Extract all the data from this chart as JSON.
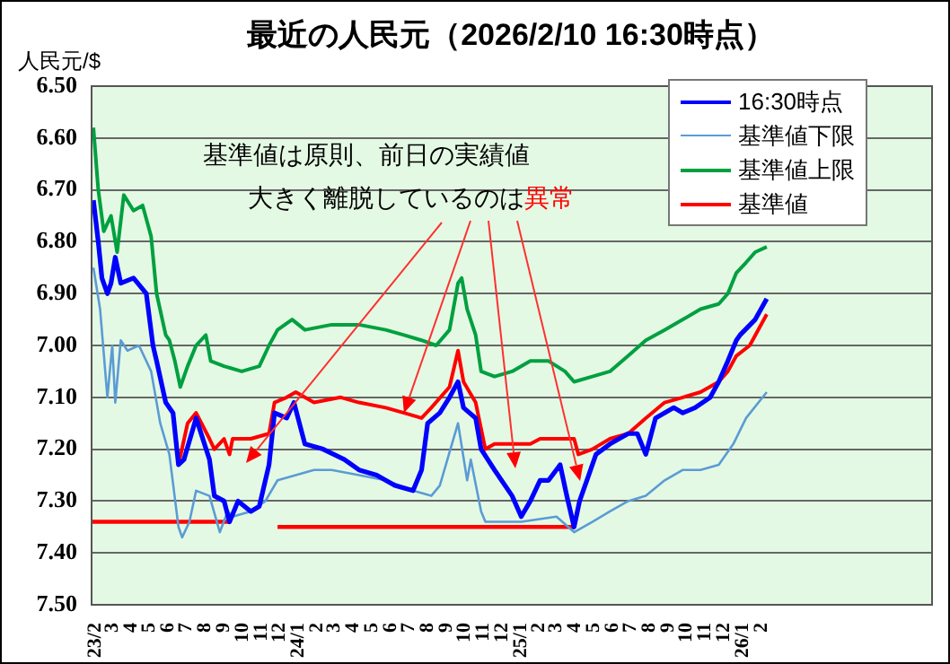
{
  "chart_data": {
    "type": "line",
    "title": "最近の人民元（2026/2/10 16:30時点）",
    "ylabel": "人民元/$",
    "annotations": [
      "基準値は原則、前日の実績値",
      {
        "text": "大きく離脱しているのは",
        "x": "2024-06-23",
        "y": 7.13
      },
      "異常"
    ],
    "xlim": [
      "2023-01-26",
      "2026-11-09"
    ],
    "xticks": [
      {
        "value": "2023-02",
        "label": "23/2"
      },
      {
        "value": "2023-03",
        "label": "3"
      },
      {
        "value": "2023-04",
        "label": "4"
      },
      {
        "value": "2023-05",
        "label": "5"
      },
      {
        "value": "2023-06",
        "label": "6"
      },
      {
        "value": "2023-07",
        "label": "7"
      },
      {
        "value": "2023-08",
        "label": "8"
      },
      {
        "value": "2023-09",
        "label": "9"
      },
      {
        "value": "2023-10",
        "label": "10"
      },
      {
        "value": "2023-11",
        "label": "11"
      },
      {
        "value": "2023-12",
        "label": "12"
      },
      {
        "value": "2024-01",
        "label": "24/1"
      },
      {
        "value": "2024-02",
        "label": "2"
      },
      {
        "value": "2024-03",
        "label": "3"
      },
      {
        "value": "2024-04",
        "label": "4"
      },
      {
        "value": "2024-05",
        "label": "5"
      },
      {
        "value": "2024-06",
        "label": "6"
      },
      {
        "value": "2024-07",
        "label": "7"
      },
      {
        "value": "2024-08",
        "label": "8"
      },
      {
        "value": "2024-09",
        "label": "9"
      },
      {
        "value": "2024-10",
        "label": "10"
      },
      {
        "value": "2024-11",
        "label": "11"
      },
      {
        "value": "2024-12",
        "label": "12"
      },
      {
        "value": "2025-01",
        "label": "25/1"
      },
      {
        "value": "2025-02",
        "label": "2"
      },
      {
        "value": "2025-03",
        "label": "3"
      },
      {
        "value": "2025-04",
        "label": "4"
      },
      {
        "value": "2025-05",
        "label": "5"
      },
      {
        "value": "2025-06",
        "label": "6"
      },
      {
        "value": "2025-07",
        "label": "7"
      },
      {
        "value": "2025-08",
        "label": "8"
      },
      {
        "value": "2025-09",
        "label": "9"
      },
      {
        "value": "2025-10",
        "label": "10"
      },
      {
        "value": "2025-11",
        "label": "11"
      },
      {
        "value": "2025-12",
        "label": "12"
      },
      {
        "value": "2026-01",
        "label": "26/1"
      },
      {
        "value": "2026-02",
        "label": "2"
      }
    ],
    "ylim": [
      7.5,
      6.5
    ],
    "yticks": [
      {
        "value": 6.5,
        "label": "6.50"
      },
      {
        "value": 6.6,
        "label": "6.60"
      },
      {
        "value": 6.7,
        "label": "6.70"
      },
      {
        "value": 6.8,
        "label": "6.80"
      },
      {
        "value": 6.9,
        "label": "6.90"
      },
      {
        "value": 7.0,
        "label": "7.00"
      },
      {
        "value": 7.1,
        "label": "7.10"
      },
      {
        "value": 7.2,
        "label": "7.20"
      },
      {
        "value": 7.3,
        "label": "7.30"
      },
      {
        "value": 7.4,
        "label": "7.40"
      },
      {
        "value": 7.5,
        "label": "7.50"
      }
    ],
    "grid": "y",
    "legend": "top right",
    "series": [
      {
        "name": "16:30時点",
        "color": "#0000ff",
        "x": [
          "2023-01-29",
          "2023-02-06",
          "2023-02-12",
          "2023-02-21",
          "2023-02-27",
          "2023-03-06",
          "2023-03-15",
          "2023-04-05",
          "2023-04-26",
          "2023-05-07",
          "2023-05-13",
          "2023-05-28",
          "2023-06-09",
          "2023-06-18",
          "2023-06-27",
          "2023-07-17",
          "2023-08-08",
          "2023-08-16",
          "2023-09-01",
          "2023-09-10",
          "2023-09-24",
          "2023-10-15",
          "2023-10-29",
          "2023-11-14",
          "2023-11-23",
          "2023-12-13",
          "2023-12-25",
          "2024-01-12",
          "2024-02-11",
          "2024-03-17",
          "2024-04-10",
          "2024-05-09",
          "2024-06-08",
          "2024-07-08",
          "2024-07-22",
          "2024-08-01",
          "2024-08-21",
          "2024-09-06",
          "2024-09-20",
          "2024-09-29",
          "2024-10-19",
          "2024-10-28",
          "2024-11-19",
          "2024-12-18",
          "2025-01-02",
          "2025-01-17",
          "2025-02-02",
          "2025-02-16",
          "2025-03-07",
          "2025-03-18",
          "2025-03-30",
          "2025-04-08",
          "2025-04-20",
          "2025-05-05",
          "2025-05-28",
          "2025-06-27",
          "2025-07-12",
          "2025-07-26",
          "2025-08-11",
          "2025-09-10",
          "2025-09-25",
          "2025-10-15",
          "2025-11-09",
          "2025-11-23",
          "2025-12-08",
          "2025-12-22",
          "2025-12-28",
          "2026-01-22",
          "2026-02-10"
        ],
        "values": [
          6.72,
          6.8,
          6.87,
          6.9,
          6.88,
          6.83,
          6.88,
          6.87,
          6.9,
          7.0,
          7.03,
          7.11,
          7.13,
          7.23,
          7.22,
          7.14,
          7.22,
          7.29,
          7.3,
          7.34,
          7.3,
          7.32,
          7.31,
          7.23,
          7.13,
          7.14,
          7.11,
          7.19,
          7.2,
          7.22,
          7.24,
          7.25,
          7.27,
          7.28,
          7.24,
          7.15,
          7.13,
          7.1,
          7.07,
          7.12,
          7.14,
          7.2,
          7.24,
          7.29,
          7.33,
          7.3,
          7.26,
          7.26,
          7.23,
          7.29,
          7.35,
          7.3,
          7.26,
          7.21,
          7.19,
          7.17,
          7.17,
          7.21,
          7.14,
          7.12,
          7.13,
          7.12,
          7.1,
          7.07,
          7.03,
          6.99,
          6.98,
          6.95,
          6.91
        ]
      },
      {
        "name": "基準値下限",
        "color": "#5b9bd5",
        "x": [
          "2023-01-29",
          "2023-02-09",
          "2023-02-21",
          "2023-03-01",
          "2023-03-06",
          "2023-03-15",
          "2023-03-26",
          "2023-04-14",
          "2023-05-04",
          "2023-05-19",
          "2023-06-03",
          "2023-06-18",
          "2023-06-24",
          "2023-07-06",
          "2023-07-17",
          "2023-08-08",
          "2023-08-25",
          "2023-09-07",
          "2023-09-15",
          "2023-10-15",
          "2023-11-08",
          "2023-11-28",
          "2023-12-28",
          "2024-01-27",
          "2024-02-25",
          "2024-04-10",
          "2024-05-24",
          "2024-07-08",
          "2024-08-07",
          "2024-08-21",
          "2024-09-20",
          "2024-10-05",
          "2024-10-11",
          "2024-10-28",
          "2024-11-04",
          "2025-01-02",
          "2025-03-01",
          "2025-03-30",
          "2025-04-29",
          "2025-05-28",
          "2025-06-27",
          "2025-07-26",
          "2025-08-26",
          "2025-09-25",
          "2025-10-24",
          "2025-11-23",
          "2025-12-17",
          "2026-01-07",
          "2026-02-10"
        ],
        "values": [
          6.85,
          6.93,
          7.1,
          7.0,
          7.11,
          6.99,
          7.01,
          7.0,
          7.05,
          7.15,
          7.21,
          7.35,
          7.37,
          7.34,
          7.28,
          7.29,
          7.36,
          7.32,
          7.33,
          7.32,
          7.3,
          7.26,
          7.25,
          7.24,
          7.24,
          7.25,
          7.26,
          7.28,
          7.29,
          7.27,
          7.15,
          7.26,
          7.22,
          7.32,
          7.34,
          7.34,
          7.33,
          7.36,
          7.34,
          7.32,
          7.3,
          7.29,
          7.26,
          7.24,
          7.24,
          7.23,
          7.19,
          7.14,
          7.09
        ]
      },
      {
        "name": "基準値上限",
        "color": "#00a040",
        "x": [
          "2023-01-29",
          "2023-02-06",
          "2023-02-15",
          "2023-02-27",
          "2023-03-09",
          "2023-03-20",
          "2023-04-05",
          "2023-04-20",
          "2023-05-04",
          "2023-05-13",
          "2023-05-28",
          "2023-06-03",
          "2023-06-12",
          "2023-06-21",
          "2023-07-03",
          "2023-07-17",
          "2023-08-02",
          "2023-08-10",
          "2023-09-01",
          "2023-09-30",
          "2023-10-29",
          "2023-11-14",
          "2023-11-28",
          "2023-12-22",
          "2024-01-12",
          "2024-02-25",
          "2024-04-10",
          "2024-05-24",
          "2024-06-23",
          "2024-07-22",
          "2024-08-15",
          "2024-09-06",
          "2024-09-20",
          "2024-09-26",
          "2024-10-05",
          "2024-10-19",
          "2024-10-28",
          "2024-11-19",
          "2024-12-18",
          "2025-01-17",
          "2025-02-16",
          "2025-03-15",
          "2025-03-30",
          "2025-04-29",
          "2025-05-28",
          "2025-06-27",
          "2025-07-26",
          "2025-08-26",
          "2025-09-25",
          "2025-10-24",
          "2025-11-23",
          "2025-12-08",
          "2025-12-22",
          "2026-01-07",
          "2026-01-22",
          "2026-02-10"
        ],
        "values": [
          6.58,
          6.7,
          6.78,
          6.75,
          6.82,
          6.71,
          6.74,
          6.73,
          6.79,
          6.9,
          6.98,
          6.99,
          7.03,
          7.08,
          7.04,
          7.0,
          6.98,
          7.03,
          7.04,
          7.05,
          7.04,
          7.0,
          6.97,
          6.95,
          6.97,
          6.96,
          6.96,
          6.97,
          6.98,
          6.99,
          7.0,
          6.97,
          6.88,
          6.87,
          6.93,
          6.98,
          7.05,
          7.06,
          7.05,
          7.03,
          7.03,
          7.05,
          7.07,
          7.06,
          7.05,
          7.02,
          6.99,
          6.97,
          6.95,
          6.93,
          6.92,
          6.9,
          6.86,
          6.84,
          6.82,
          6.81
        ]
      },
      {
        "name": "基準値",
        "color": "#ff0000",
        "x": [
          "2023-06-18",
          "2023-07-03",
          "2023-07-17",
          "2023-08-08",
          "2023-08-16",
          "2023-09-01",
          "2023-09-10",
          "2023-09-15",
          "2023-10-15",
          "2023-11-14",
          "2023-11-23",
          "2023-12-13",
          "2023-12-28",
          "2024-01-27",
          "2024-03-11",
          "2024-04-10",
          "2024-05-24",
          "2024-06-23",
          "2024-07-22",
          "2024-08-07",
          "2024-09-06",
          "2024-09-20",
          "2024-09-29",
          "2024-10-19",
          "2024-11-04",
          "2024-11-19",
          "2025-01-17",
          "2025-02-02",
          "2025-03-30",
          "2025-04-06",
          "2025-04-29",
          "2025-05-28",
          "2025-06-27",
          "2025-07-26",
          "2025-08-26",
          "2025-09-25",
          "2025-10-24",
          "2025-11-23",
          "2025-12-08",
          "2025-12-22",
          "2026-01-13",
          "2026-02-10"
        ],
        "values": [
          7.23,
          7.15,
          7.13,
          7.18,
          7.2,
          7.18,
          7.21,
          7.18,
          7.18,
          7.17,
          7.11,
          7.1,
          7.09,
          7.11,
          7.1,
          7.11,
          7.12,
          7.13,
          7.14,
          7.12,
          7.08,
          7.01,
          7.07,
          7.11,
          7.2,
          7.19,
          7.19,
          7.18,
          7.18,
          7.21,
          7.2,
          7.18,
          7.17,
          7.14,
          7.11,
          7.1,
          7.09,
          7.07,
          7.05,
          7.02,
          7.0,
          6.94
        ]
      },
      {
        "color": "#ff0000",
        "x": [
          "2023-01-26",
          "2023-09-10"
        ],
        "values": [
          7.34,
          7.34
        ]
      },
      {
        "color": "#ff0000",
        "x": [
          "2023-11-28",
          "2025-03-30"
        ],
        "values": [
          7.35,
          7.35
        ]
      }
    ]
  }
}
